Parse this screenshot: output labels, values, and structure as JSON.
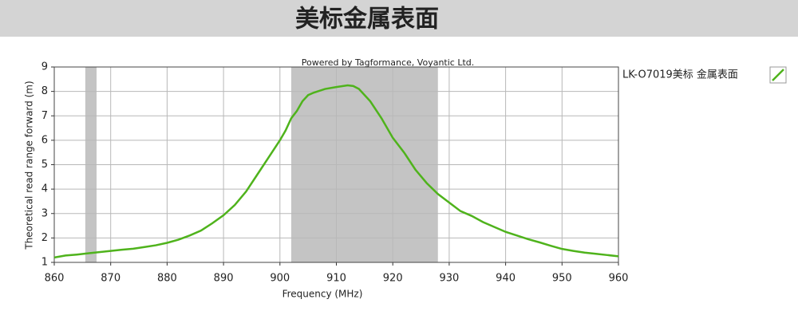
{
  "chart_data": {
    "type": "line",
    "title": "美标金属表面",
    "subtitle": "Powered by Tagformance, Voyantic Ltd.",
    "x_label": "Frequency (MHz)",
    "y_label": "Theoretical read range forward (m)",
    "xlim": [
      860,
      960
    ],
    "ylim": [
      1,
      9
    ],
    "xticks": [
      860,
      870,
      880,
      890,
      900,
      910,
      920,
      930,
      940,
      950,
      960
    ],
    "yticks": [
      1,
      2,
      3,
      4,
      5,
      6,
      7,
      8,
      9
    ],
    "grid": true,
    "highlight_bands": [
      {
        "from": 865.5,
        "to": 867.5
      },
      {
        "from": 902,
        "to": 928
      }
    ],
    "legend_position": "right",
    "x": [
      860,
      862,
      864,
      866,
      868,
      870,
      872,
      874,
      876,
      878,
      880,
      882,
      884,
      886,
      888,
      890,
      892,
      894,
      896,
      898,
      900,
      901,
      902,
      903,
      904,
      905,
      906,
      908,
      910,
      912,
      913,
      914,
      916,
      918,
      920,
      922,
      924,
      926,
      928,
      930,
      932,
      934,
      936,
      938,
      940,
      942,
      944,
      946,
      948,
      950,
      952,
      954,
      956,
      958,
      960
    ],
    "series": [
      {
        "name": "LK-O7019美标 金属表面",
        "color": "#4fb31c",
        "values": [
          1.2,
          1.28,
          1.32,
          1.37,
          1.42,
          1.47,
          1.52,
          1.56,
          1.63,
          1.7,
          1.8,
          1.93,
          2.1,
          2.3,
          2.6,
          2.93,
          3.35,
          3.9,
          4.6,
          5.3,
          6.0,
          6.4,
          6.9,
          7.2,
          7.6,
          7.85,
          7.95,
          8.1,
          8.18,
          8.25,
          8.22,
          8.1,
          7.6,
          6.9,
          6.1,
          5.5,
          4.8,
          4.25,
          3.8,
          3.45,
          3.1,
          2.9,
          2.65,
          2.45,
          2.25,
          2.1,
          1.95,
          1.82,
          1.68,
          1.55,
          1.47,
          1.4,
          1.35,
          1.3,
          1.25
        ]
      }
    ]
  }
}
